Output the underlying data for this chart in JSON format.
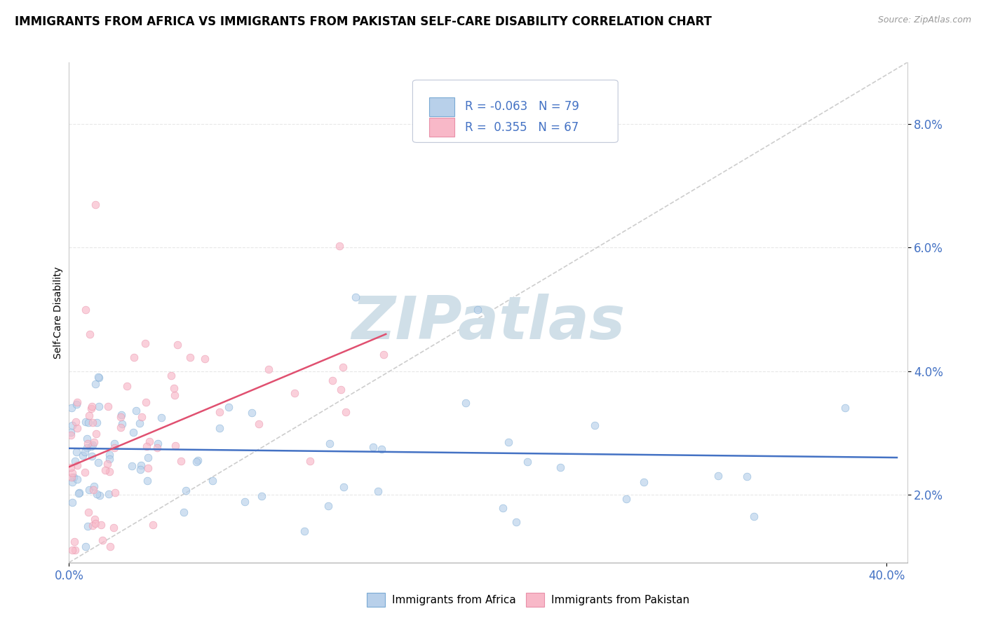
{
  "title": "IMMIGRANTS FROM AFRICA VS IMMIGRANTS FROM PAKISTAN SELF-CARE DISABILITY CORRELATION CHART",
  "source": "Source: ZipAtlas.com",
  "ylabel": "Self-Care Disability",
  "xlim": [
    0.0,
    0.41
  ],
  "ylim": [
    0.009,
    0.09
  ],
  "ytick_vals": [
    0.02,
    0.04,
    0.06,
    0.08
  ],
  "ytick_labels": [
    "2.0%",
    "4.0%",
    "6.0%",
    "8.0%"
  ],
  "xtick_vals": [
    0.0,
    0.4
  ],
  "xtick_labels": [
    "0.0%",
    "40.0%"
  ],
  "legend_africa": "Immigrants from Africa",
  "legend_pakistan": "Immigrants from Pakistan",
  "R_africa": "-0.063",
  "N_africa": "79",
  "R_pakistan": "0.355",
  "N_pakistan": "67",
  "color_africa_fill": "#b8d0ea",
  "color_africa_edge": "#7aaad4",
  "color_pakistan_fill": "#f8b8c8",
  "color_pakistan_edge": "#e890a8",
  "color_africa_line": "#4472c4",
  "color_pakistan_line": "#e05070",
  "color_ref_line": "#c8c8c8",
  "color_grid": "#e8e8e8",
  "color_axis_ticks": "#4472c4",
  "color_title": "#000000",
  "watermark_color": "#d0dfe8",
  "africa_marker_size": 60,
  "pakistan_marker_size": 60,
  "africa_alpha": 0.65,
  "pakistan_alpha": 0.65,
  "africa_trend_x": [
    0.0,
    0.405
  ],
  "africa_trend_y": [
    0.0275,
    0.026
  ],
  "pakistan_trend_x": [
    0.0,
    0.155
  ],
  "pakistan_trend_y": [
    0.0245,
    0.046
  ],
  "ref_line_x": [
    0.0,
    0.41
  ],
  "ref_line_y": [
    0.009,
    0.09
  ]
}
